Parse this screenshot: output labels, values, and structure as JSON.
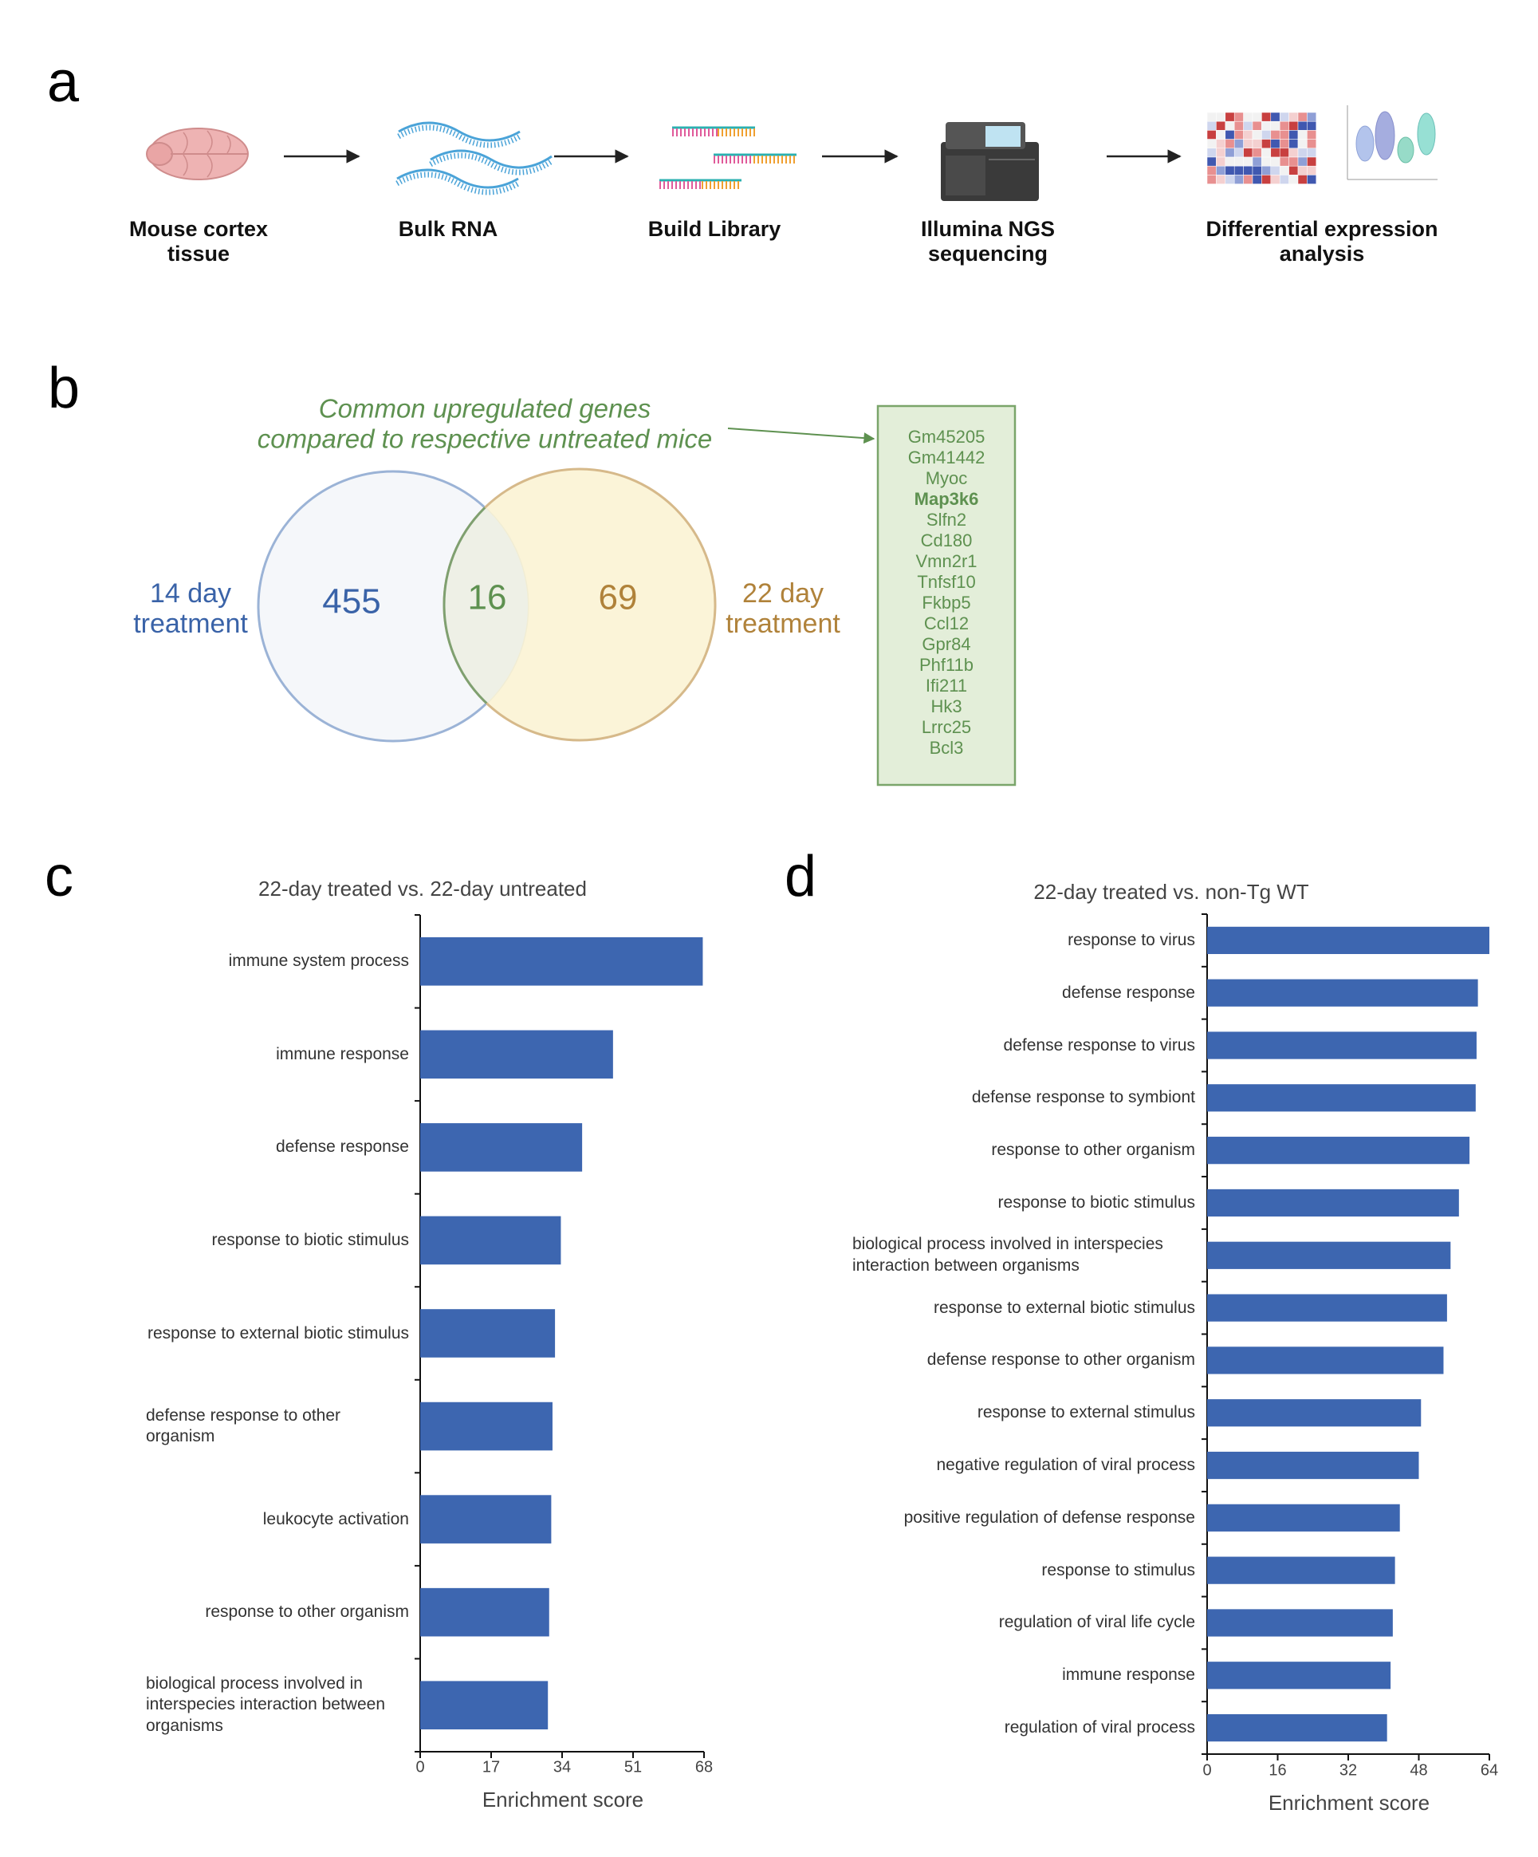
{
  "panel_labels": [
    "a",
    "b",
    "c",
    "d"
  ],
  "workflow": {
    "steps": [
      [
        "Mouse cortex",
        "tissue"
      ],
      [
        "Bulk RNA"
      ],
      [
        "Build Library"
      ],
      [
        "Illumina NGS",
        "sequencing"
      ],
      [
        "Differential expression",
        "analysis"
      ]
    ]
  },
  "venn": {
    "annotation": [
      "Common upregulated genes",
      "compared to respective untreated mice"
    ],
    "left_label": [
      "14 day",
      "treatment"
    ],
    "right_label": [
      "22 day",
      "treatment"
    ],
    "left_only": 455,
    "overlap": 16,
    "right_only": 69,
    "genes": [
      "Gm45205",
      "Gm41442",
      "Myoc",
      "Map3k6",
      "Slfn2",
      "Cd180",
      "Vmn2r1",
      "Tnfsf10",
      "Fkbp5",
      "Ccl12",
      "Gpr84",
      "Phf11b",
      "Ifi211",
      "Hk3",
      "Lrrc25",
      "Bcl3"
    ],
    "bold_gene_index": 3
  },
  "chart_data": [
    {
      "type": "bar",
      "orientation": "horizontal",
      "title": "22-day treated vs. 22-day untreated",
      "xlabel": "Enrichment score",
      "categories": [
        "immune system process",
        "immune response",
        "defense response",
        "response to biotic stimulus",
        "response to external biotic stimulus",
        "defense response to other organism",
        "leukocyte activation",
        "response to other organism",
        "biological process involved in interspecies interaction between organisms"
      ],
      "values": [
        67.7,
        46.2,
        38.8,
        33.7,
        32.3,
        31.7,
        31.4,
        30.9,
        30.6
      ],
      "color": "#3d66b0",
      "xlim": [
        0,
        68
      ],
      "xticks": [
        0,
        17,
        34,
        51,
        68
      ]
    },
    {
      "type": "bar",
      "orientation": "horizontal",
      "title": "22-day treated vs. non-Tg WT",
      "xlabel": "Enrichment score",
      "categories": [
        "response to virus",
        "defense response",
        "defense response to virus",
        "defense response to symbiont",
        "response to other organism",
        "response to biotic stimulus",
        "biological process involved in interspecies interaction between organisms",
        "response to external biotic stimulus",
        "defense response to other organism",
        "response to external stimulus",
        "negative regulation of viral process",
        "positive regulation of defense response",
        "response to stimulus",
        "regulation of viral life cycle",
        "immune response",
        "regulation of viral process"
      ],
      "values": [
        64.0,
        61.4,
        61.1,
        60.9,
        59.5,
        57.1,
        55.2,
        54.4,
        53.6,
        48.5,
        48.0,
        43.7,
        42.6,
        42.1,
        41.6,
        40.8
      ],
      "color": "#3d66b0",
      "xlim": [
        0,
        64
      ],
      "xticks": [
        0,
        16,
        32,
        48,
        64
      ]
    }
  ]
}
